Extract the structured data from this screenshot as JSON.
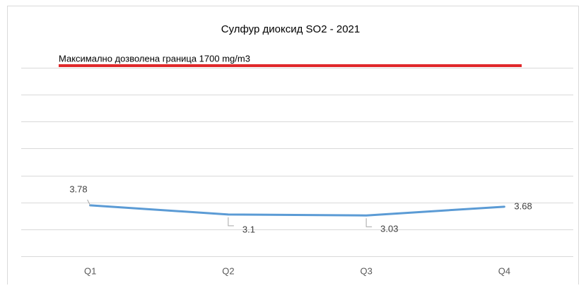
{
  "chart_data": {
    "type": "line",
    "title": "Сулфур диоксид SO2 - 2021",
    "annotation": "Максимално дозволена граница 1700 mg/m3",
    "categories": [
      "Q1",
      "Q2",
      "Q3",
      "Q4"
    ],
    "series": [
      {
        "name": "SO2",
        "color": "#5b9bd5",
        "values": [
          3.78,
          3.1,
          3.03,
          3.68
        ]
      }
    ],
    "ylim": [
      0,
      14
    ],
    "yticks": [
      0,
      2,
      4,
      6,
      8,
      10,
      12,
      14
    ],
    "grid": true
  }
}
